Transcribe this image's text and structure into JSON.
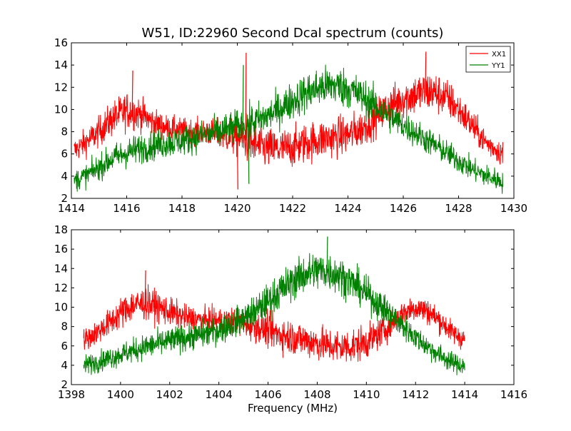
{
  "figure": {
    "title": "W51, ID:22960 Second Dcal spectrum (counts)"
  },
  "chart_data": [
    {
      "type": "line",
      "title": "W51, ID:22960 Second Dcal spectrum (counts)",
      "xlabel": "",
      "ylabel": "",
      "xlim": [
        1414,
        1430
      ],
      "ylim": [
        2,
        16
      ],
      "xticks": [
        1414,
        1416,
        1418,
        1420,
        1422,
        1424,
        1426,
        1428,
        1430
      ],
      "yticks": [
        2,
        4,
        6,
        8,
        10,
        12,
        14,
        16
      ],
      "legend": "top-right",
      "series": [
        {
          "name": "XX1",
          "color": "#ff0000",
          "x": [
            1414.1,
            1414.5,
            1415.0,
            1415.5,
            1416.0,
            1416.5,
            1417.0,
            1417.5,
            1418.0,
            1418.5,
            1419.0,
            1419.5,
            1420.0,
            1420.5,
            1421.0,
            1421.5,
            1422.0,
            1422.5,
            1423.0,
            1423.5,
            1424.0,
            1424.5,
            1425.0,
            1425.5,
            1426.0,
            1426.5,
            1427.0,
            1427.5,
            1428.0,
            1428.5,
            1429.0,
            1429.6
          ],
          "mean": [
            6.3,
            7.0,
            8.0,
            9.2,
            9.9,
            9.6,
            8.8,
            8.3,
            8.1,
            8.0,
            7.9,
            7.7,
            7.5,
            7.0,
            6.5,
            6.4,
            6.6,
            7.0,
            7.3,
            7.5,
            7.7,
            8.3,
            9.3,
            10.3,
            11.0,
            11.4,
            11.6,
            11.2,
            10.0,
            8.5,
            7.0,
            6.0
          ],
          "spread": [
            1.0,
            1.1,
            1.2,
            1.4,
            1.5,
            1.3,
            1.1,
            1.0,
            1.0,
            1.0,
            1.1,
            1.3,
            1.6,
            1.8,
            1.7,
            1.6,
            1.6,
            1.6,
            1.6,
            1.6,
            1.6,
            1.5,
            1.5,
            1.5,
            1.6,
            1.7,
            1.7,
            1.6,
            1.4,
            1.2,
            1.0,
            1.0
          ]
        },
        {
          "name": "YY1",
          "color": "#008000",
          "x": [
            1414.1,
            1414.5,
            1415.0,
            1415.5,
            1416.0,
            1416.5,
            1417.0,
            1417.5,
            1418.0,
            1418.5,
            1419.0,
            1419.5,
            1420.0,
            1420.5,
            1421.0,
            1421.5,
            1422.0,
            1422.5,
            1423.0,
            1423.5,
            1424.0,
            1424.5,
            1425.0,
            1425.5,
            1426.0,
            1426.5,
            1427.0,
            1427.5,
            1428.0,
            1428.5,
            1429.0,
            1429.6
          ],
          "mean": [
            3.6,
            4.0,
            4.8,
            5.6,
            6.1,
            6.5,
            6.8,
            7.0,
            7.2,
            7.5,
            7.8,
            8.1,
            8.4,
            8.8,
            9.3,
            10.0,
            10.8,
            11.5,
            12.0,
            12.2,
            11.9,
            11.2,
            10.3,
            9.4,
            8.6,
            7.8,
            7.0,
            6.2,
            5.4,
            4.6,
            4.0,
            3.5
          ],
          "spread": [
            0.9,
            0.9,
            1.0,
            1.1,
            1.2,
            1.2,
            1.2,
            1.2,
            1.2,
            1.2,
            1.3,
            1.3,
            1.4,
            1.4,
            1.4,
            1.4,
            1.5,
            1.6,
            1.6,
            1.6,
            1.6,
            1.5,
            1.4,
            1.3,
            1.2,
            1.1,
            1.1,
            1.0,
            1.0,
            0.9,
            0.9,
            0.9
          ]
        }
      ],
      "spikes": [
        {
          "series": "XX1",
          "x": 1420.3,
          "y": 15.1
        },
        {
          "series": "YY1",
          "x": 1420.2,
          "y": 14.0
        },
        {
          "series": "XX1",
          "x": 1416.2,
          "y": 13.5
        },
        {
          "series": "XX1",
          "x": 1426.8,
          "y": 15.2
        }
      ],
      "dips": [
        {
          "series": "XX1",
          "x": 1420.0,
          "y": 2.8
        },
        {
          "series": "YY1",
          "x": 1420.4,
          "y": 3.3
        }
      ]
    },
    {
      "type": "line",
      "title": "",
      "xlabel": "Frequency (MHz)",
      "ylabel": "",
      "xlim": [
        1398,
        1416
      ],
      "ylim": [
        2,
        18
      ],
      "xticks": [
        1398,
        1400,
        1402,
        1404,
        1406,
        1408,
        1410,
        1412,
        1414,
        1416
      ],
      "yticks": [
        2,
        4,
        6,
        8,
        10,
        12,
        14,
        16,
        18
      ],
      "series": [
        {
          "name": "XX1",
          "color": "#ff0000",
          "x": [
            1398.5,
            1399.0,
            1399.5,
            1400.0,
            1400.5,
            1401.0,
            1401.5,
            1402.0,
            1402.5,
            1403.0,
            1403.5,
            1404.0,
            1404.5,
            1405.0,
            1405.5,
            1406.0,
            1406.5,
            1407.0,
            1407.5,
            1408.0,
            1408.5,
            1409.0,
            1409.5,
            1410.0,
            1410.5,
            1411.0,
            1411.5,
            1412.0,
            1412.5,
            1413.0,
            1413.5,
            1414.0
          ],
          "mean": [
            6.6,
            7.3,
            8.3,
            9.4,
            10.2,
            10.4,
            10.1,
            9.5,
            9.0,
            8.8,
            8.6,
            8.6,
            8.6,
            8.4,
            8.0,
            7.6,
            7.2,
            6.9,
            6.6,
            6.3,
            6.0,
            5.9,
            6.0,
            6.4,
            7.2,
            8.3,
            9.4,
            10.0,
            9.6,
            8.6,
            7.4,
            6.6
          ],
          "spread": [
            1.0,
            1.1,
            1.2,
            1.4,
            1.5,
            1.5,
            1.4,
            1.3,
            1.2,
            1.1,
            1.1,
            1.1,
            1.2,
            1.3,
            1.4,
            1.5,
            1.6,
            1.6,
            1.6,
            1.6,
            1.6,
            1.6,
            1.6,
            1.5,
            1.4,
            1.3,
            1.2,
            1.2,
            1.2,
            1.1,
            1.0,
            1.0
          ]
        },
        {
          "name": "YY1",
          "color": "#008000",
          "x": [
            1398.5,
            1399.0,
            1399.5,
            1400.0,
            1400.5,
            1401.0,
            1401.5,
            1402.0,
            1402.5,
            1403.0,
            1403.5,
            1404.0,
            1404.5,
            1405.0,
            1405.5,
            1406.0,
            1406.5,
            1407.0,
            1407.5,
            1408.0,
            1408.5,
            1409.0,
            1409.5,
            1410.0,
            1410.5,
            1411.0,
            1411.5,
            1412.0,
            1412.5,
            1413.0,
            1413.5,
            1414.0
          ],
          "mean": [
            4.0,
            4.3,
            4.7,
            5.1,
            5.5,
            5.9,
            6.2,
            6.5,
            6.8,
            7.0,
            7.3,
            7.7,
            8.2,
            8.8,
            9.6,
            10.6,
            11.7,
            12.7,
            13.4,
            13.8,
            13.7,
            13.2,
            12.4,
            11.4,
            10.3,
            9.2,
            8.0,
            6.9,
            5.9,
            5.0,
            4.3,
            3.9
          ],
          "spread": [
            0.9,
            0.9,
            1.0,
            1.0,
            1.1,
            1.1,
            1.2,
            1.2,
            1.2,
            1.2,
            1.3,
            1.3,
            1.3,
            1.4,
            1.5,
            1.6,
            1.7,
            1.7,
            1.8,
            1.8,
            1.8,
            1.7,
            1.6,
            1.5,
            1.4,
            1.3,
            1.2,
            1.1,
            1.0,
            1.0,
            0.9,
            0.9
          ]
        }
      ],
      "spikes": [
        {
          "series": "YY1",
          "x": 1408.4,
          "y": 17.3
        },
        {
          "series": "XX1",
          "x": 1401.0,
          "y": 13.8
        }
      ],
      "dips": []
    }
  ]
}
